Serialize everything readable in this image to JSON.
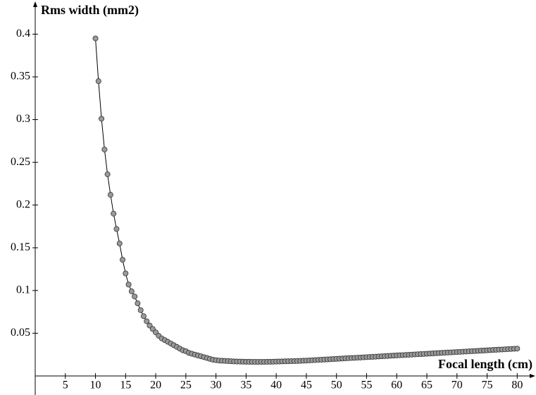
{
  "chart_data": {
    "type": "line",
    "x_label": "Focal length (cm)",
    "y_label": "Rms width (mm2)",
    "x": [
      10,
      10.5,
      11,
      11.5,
      12,
      12.5,
      13,
      13.5,
      14,
      14.5,
      15,
      15.5,
      16,
      16.5,
      17,
      17.5,
      18,
      18.5,
      19,
      19.5,
      20,
      20.5,
      21,
      21.5,
      22,
      22.5,
      23,
      23.5,
      24,
      24.5,
      25,
      25.5,
      26,
      26.5,
      27,
      27.5,
      28,
      28.5,
      29,
      29.5,
      30,
      30.5,
      31,
      31.5,
      32,
      32.5,
      33,
      33.5,
      34,
      34.5,
      35,
      35.5,
      36,
      36.5,
      37,
      37.5,
      38,
      38.5,
      39,
      39.5,
      40,
      40.5,
      41,
      41.5,
      42,
      42.5,
      43,
      43.5,
      44,
      44.5,
      45,
      45.5,
      46,
      46.5,
      47,
      47.5,
      48,
      48.5,
      49,
      49.5,
      50,
      50.5,
      51,
      51.5,
      52,
      52.5,
      53,
      53.5,
      54,
      54.5,
      55,
      55.5,
      56,
      56.5,
      57,
      57.5,
      58,
      58.5,
      59,
      59.5,
      60,
      60.5,
      61,
      61.5,
      62,
      62.5,
      63,
      63.5,
      64,
      64.5,
      65,
      65.5,
      66,
      66.5,
      67,
      67.5,
      68,
      68.5,
      69,
      69.5,
      70,
      70.5,
      71,
      71.5,
      72,
      72.5,
      73,
      73.5,
      74,
      74.5,
      75,
      75.5,
      76,
      76.5,
      77,
      77.5,
      78,
      78.5,
      79,
      79.5,
      80
    ],
    "series": [
      {
        "color": "#999999",
        "values": [
          0.395,
          0.345,
          0.301,
          0.265,
          0.236,
          0.212,
          0.19,
          0.172,
          0.155,
          0.136,
          0.12,
          0.107,
          0.099,
          0.093,
          0.085,
          0.077,
          0.07,
          0.064,
          0.059,
          0.055,
          0.051,
          0.047,
          0.044,
          0.042,
          0.04,
          0.038,
          0.036,
          0.034,
          0.032,
          0.03,
          0.029,
          0.027,
          0.026,
          0.025,
          0.024,
          0.023,
          0.022,
          0.021,
          0.02,
          0.019,
          0.0185,
          0.018,
          0.0178,
          0.0176,
          0.0174,
          0.0172,
          0.017,
          0.0169,
          0.0168,
          0.0167,
          0.0166,
          0.0166,
          0.0165,
          0.0165,
          0.0165,
          0.0165,
          0.0165,
          0.0166,
          0.0166,
          0.0167,
          0.0168,
          0.0169,
          0.017,
          0.0171,
          0.0172,
          0.0173,
          0.0174,
          0.0175,
          0.0176,
          0.0178,
          0.018,
          0.0182,
          0.0184,
          0.0186,
          0.0188,
          0.019,
          0.0192,
          0.0194,
          0.0196,
          0.0198,
          0.02,
          0.0202,
          0.0204,
          0.0206,
          0.0208,
          0.021,
          0.0212,
          0.0214,
          0.0216,
          0.0218,
          0.022,
          0.0222,
          0.0224,
          0.0226,
          0.0228,
          0.023,
          0.0232,
          0.0234,
          0.0236,
          0.0238,
          0.024,
          0.0242,
          0.0244,
          0.0246,
          0.0248,
          0.025,
          0.0252,
          0.0254,
          0.0256,
          0.0258,
          0.026,
          0.0262,
          0.0264,
          0.0266,
          0.0268,
          0.027,
          0.0272,
          0.0274,
          0.0276,
          0.0278,
          0.028,
          0.0282,
          0.0284,
          0.0286,
          0.0288,
          0.029,
          0.0292,
          0.0294,
          0.0296,
          0.0298,
          0.03,
          0.0302,
          0.0304,
          0.0306,
          0.0308,
          0.031,
          0.0312,
          0.0314,
          0.0316,
          0.0318,
          0.032
        ]
      }
    ],
    "xlim": [
      0,
      83
    ],
    "ylim": [
      0,
      0.435
    ],
    "xticks": [
      5,
      10,
      15,
      20,
      25,
      30,
      35,
      40,
      45,
      50,
      55,
      60,
      65,
      70,
      75,
      80
    ],
    "yticks": [
      0.05,
      0.1,
      0.15,
      0.2,
      0.25,
      0.3,
      0.35,
      0.4
    ]
  }
}
